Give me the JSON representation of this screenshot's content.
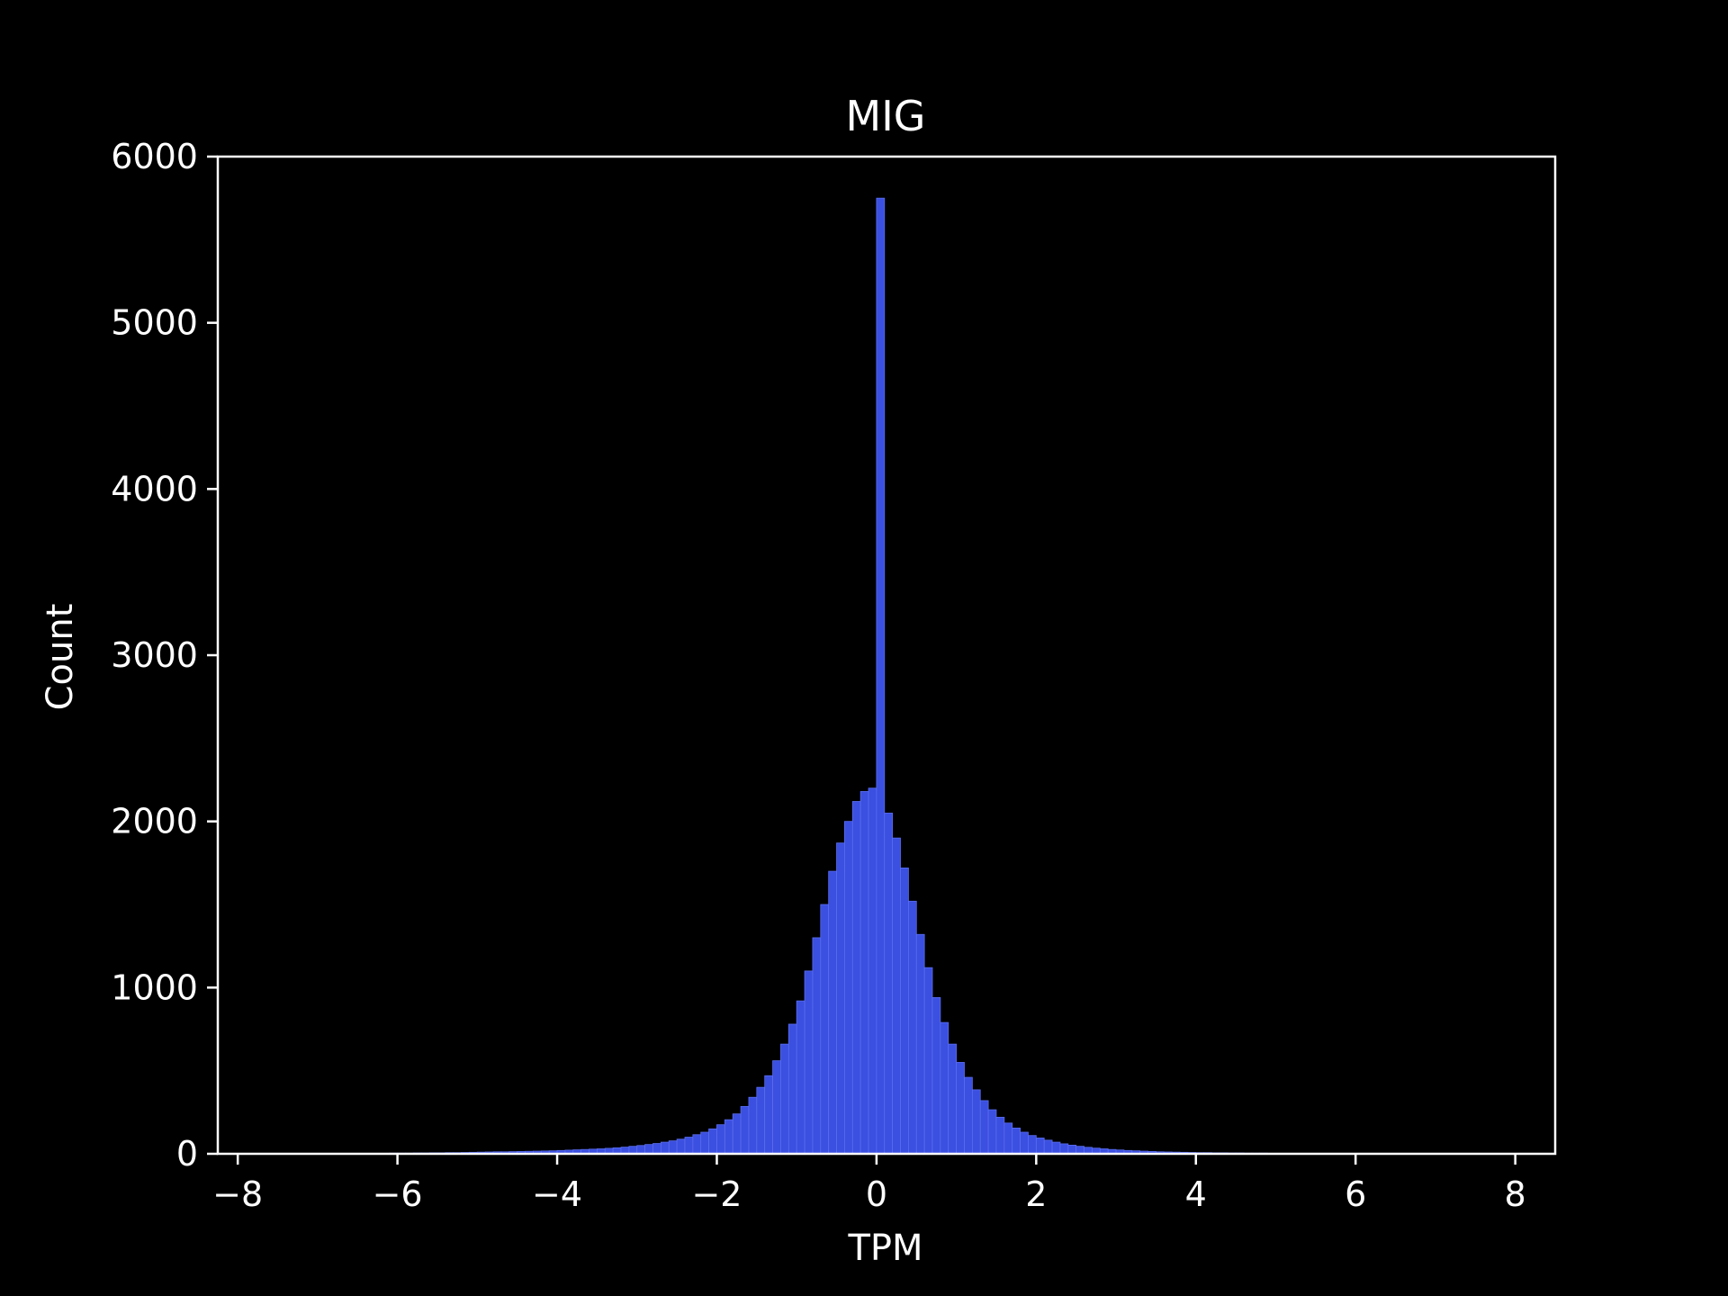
{
  "chart_data": {
    "type": "bar",
    "title": "MIG",
    "xlabel": "TPM",
    "ylabel": "Count",
    "xlim": [
      -8.25,
      8.5
    ],
    "ylim": [
      0,
      6000
    ],
    "xticks": [
      -8,
      -6,
      -4,
      -2,
      0,
      2,
      4,
      6,
      8
    ],
    "xtick_labels": [
      "−8",
      "−6",
      "−4",
      "−2",
      "0",
      "2",
      "4",
      "6",
      "8"
    ],
    "yticks": [
      0,
      1000,
      2000,
      3000,
      4000,
      5000,
      6000
    ],
    "ytick_labels": [
      "0",
      "1000",
      "2000",
      "3000",
      "4000",
      "5000",
      "6000"
    ],
    "bin_width": 0.1,
    "bar_color": "#3b4fe0",
    "edge_color": "#5a6ef0",
    "background": "#000000",
    "foreground": "#ffffff",
    "grid": false,
    "bins": [
      {
        "x": -8.0,
        "y": 1
      },
      {
        "x": -7.9,
        "y": 0
      },
      {
        "x": -7.8,
        "y": 1
      },
      {
        "x": -7.7,
        "y": 0
      },
      {
        "x": -7.6,
        "y": 1
      },
      {
        "x": -7.5,
        "y": 1
      },
      {
        "x": -7.4,
        "y": 0
      },
      {
        "x": -7.3,
        "y": 1
      },
      {
        "x": -7.2,
        "y": 1
      },
      {
        "x": -7.1,
        "y": 1
      },
      {
        "x": -7.0,
        "y": 2
      },
      {
        "x": -6.9,
        "y": 1
      },
      {
        "x": -6.8,
        "y": 2
      },
      {
        "x": -6.7,
        "y": 2
      },
      {
        "x": -6.6,
        "y": 2
      },
      {
        "x": -6.5,
        "y": 3
      },
      {
        "x": -6.4,
        "y": 2
      },
      {
        "x": -6.3,
        "y": 3
      },
      {
        "x": -6.2,
        "y": 3
      },
      {
        "x": -6.1,
        "y": 4
      },
      {
        "x": -6.0,
        "y": 4
      },
      {
        "x": -5.9,
        "y": 4
      },
      {
        "x": -5.8,
        "y": 5
      },
      {
        "x": -5.7,
        "y": 5
      },
      {
        "x": -5.6,
        "y": 6
      },
      {
        "x": -5.5,
        "y": 6
      },
      {
        "x": -5.4,
        "y": 7
      },
      {
        "x": -5.3,
        "y": 7
      },
      {
        "x": -5.2,
        "y": 8
      },
      {
        "x": -5.1,
        "y": 9
      },
      {
        "x": -5.0,
        "y": 10
      },
      {
        "x": -4.9,
        "y": 11
      },
      {
        "x": -4.8,
        "y": 12
      },
      {
        "x": -4.7,
        "y": 12
      },
      {
        "x": -4.6,
        "y": 13
      },
      {
        "x": -4.5,
        "y": 14
      },
      {
        "x": -4.4,
        "y": 15
      },
      {
        "x": -4.3,
        "y": 16
      },
      {
        "x": -4.2,
        "y": 17
      },
      {
        "x": -4.1,
        "y": 18
      },
      {
        "x": -4.0,
        "y": 20
      },
      {
        "x": -3.9,
        "y": 22
      },
      {
        "x": -3.8,
        "y": 24
      },
      {
        "x": -3.7,
        "y": 26
      },
      {
        "x": -3.6,
        "y": 28
      },
      {
        "x": -3.5,
        "y": 30
      },
      {
        "x": -3.4,
        "y": 33
      },
      {
        "x": -3.3,
        "y": 36
      },
      {
        "x": -3.2,
        "y": 40
      },
      {
        "x": -3.1,
        "y": 45
      },
      {
        "x": -3.0,
        "y": 50
      },
      {
        "x": -2.9,
        "y": 56
      },
      {
        "x": -2.8,
        "y": 62
      },
      {
        "x": -2.7,
        "y": 70
      },
      {
        "x": -2.6,
        "y": 78
      },
      {
        "x": -2.5,
        "y": 88
      },
      {
        "x": -2.4,
        "y": 100
      },
      {
        "x": -2.3,
        "y": 115
      },
      {
        "x": -2.2,
        "y": 130
      },
      {
        "x": -2.1,
        "y": 150
      },
      {
        "x": -2.0,
        "y": 175
      },
      {
        "x": -1.9,
        "y": 205
      },
      {
        "x": -1.8,
        "y": 240
      },
      {
        "x": -1.7,
        "y": 285
      },
      {
        "x": -1.6,
        "y": 340
      },
      {
        "x": -1.5,
        "y": 400
      },
      {
        "x": -1.4,
        "y": 470
      },
      {
        "x": -1.3,
        "y": 560
      },
      {
        "x": -1.2,
        "y": 660
      },
      {
        "x": -1.1,
        "y": 780
      },
      {
        "x": -1.0,
        "y": 920
      },
      {
        "x": -0.9,
        "y": 1100
      },
      {
        "x": -0.8,
        "y": 1300
      },
      {
        "x": -0.7,
        "y": 1500
      },
      {
        "x": -0.6,
        "y": 1700
      },
      {
        "x": -0.5,
        "y": 1870
      },
      {
        "x": -0.4,
        "y": 2000
      },
      {
        "x": -0.3,
        "y": 2120
      },
      {
        "x": -0.2,
        "y": 2180
      },
      {
        "x": -0.1,
        "y": 2200
      },
      {
        "x": 0.0,
        "y": 5750
      },
      {
        "x": 0.1,
        "y": 2050
      },
      {
        "x": 0.2,
        "y": 1900
      },
      {
        "x": 0.3,
        "y": 1720
      },
      {
        "x": 0.4,
        "y": 1520
      },
      {
        "x": 0.5,
        "y": 1320
      },
      {
        "x": 0.6,
        "y": 1120
      },
      {
        "x": 0.7,
        "y": 940
      },
      {
        "x": 0.8,
        "y": 790
      },
      {
        "x": 0.9,
        "y": 660
      },
      {
        "x": 1.0,
        "y": 550
      },
      {
        "x": 1.1,
        "y": 460
      },
      {
        "x": 1.2,
        "y": 385
      },
      {
        "x": 1.3,
        "y": 320
      },
      {
        "x": 1.4,
        "y": 265
      },
      {
        "x": 1.5,
        "y": 220
      },
      {
        "x": 1.6,
        "y": 185
      },
      {
        "x": 1.7,
        "y": 155
      },
      {
        "x": 1.8,
        "y": 130
      },
      {
        "x": 1.9,
        "y": 110
      },
      {
        "x": 2.0,
        "y": 95
      },
      {
        "x": 2.1,
        "y": 82
      },
      {
        "x": 2.2,
        "y": 70
      },
      {
        "x": 2.3,
        "y": 60
      },
      {
        "x": 2.4,
        "y": 52
      },
      {
        "x": 2.5,
        "y": 45
      },
      {
        "x": 2.6,
        "y": 39
      },
      {
        "x": 2.7,
        "y": 34
      },
      {
        "x": 2.8,
        "y": 30
      },
      {
        "x": 2.9,
        "y": 26
      },
      {
        "x": 3.0,
        "y": 23
      },
      {
        "x": 3.1,
        "y": 20
      },
      {
        "x": 3.2,
        "y": 18
      },
      {
        "x": 3.3,
        "y": 16
      },
      {
        "x": 3.4,
        "y": 14
      },
      {
        "x": 3.5,
        "y": 12
      },
      {
        "x": 3.6,
        "y": 11
      },
      {
        "x": 3.7,
        "y": 10
      },
      {
        "x": 3.8,
        "y": 9
      },
      {
        "x": 3.9,
        "y": 8
      },
      {
        "x": 4.0,
        "y": 7
      },
      {
        "x": 4.1,
        "y": 7
      },
      {
        "x": 4.2,
        "y": 6
      },
      {
        "x": 4.3,
        "y": 6
      },
      {
        "x": 4.4,
        "y": 5
      },
      {
        "x": 4.5,
        "y": 5
      },
      {
        "x": 4.6,
        "y": 4
      },
      {
        "x": 4.7,
        "y": 4
      },
      {
        "x": 4.8,
        "y": 4
      },
      {
        "x": 4.9,
        "y": 3
      },
      {
        "x": 5.0,
        "y": 3
      },
      {
        "x": 5.1,
        "y": 3
      },
      {
        "x": 5.2,
        "y": 3
      },
      {
        "x": 5.3,
        "y": 2
      },
      {
        "x": 5.4,
        "y": 2
      },
      {
        "x": 5.5,
        "y": 2
      },
      {
        "x": 5.6,
        "y": 2
      },
      {
        "x": 5.7,
        "y": 2
      },
      {
        "x": 5.8,
        "y": 1
      },
      {
        "x": 5.9,
        "y": 1
      },
      {
        "x": 6.0,
        "y": 1
      },
      {
        "x": 6.1,
        "y": 1
      },
      {
        "x": 6.2,
        "y": 1
      },
      {
        "x": 6.3,
        "y": 1
      },
      {
        "x": 6.4,
        "y": 1
      },
      {
        "x": 6.5,
        "y": 1
      },
      {
        "x": 6.6,
        "y": 1
      },
      {
        "x": 6.7,
        "y": 0
      },
      {
        "x": 6.8,
        "y": 1
      },
      {
        "x": 6.9,
        "y": 0
      },
      {
        "x": 7.0,
        "y": 1
      },
      {
        "x": 7.1,
        "y": 0
      },
      {
        "x": 7.2,
        "y": 1
      },
      {
        "x": 7.3,
        "y": 0
      },
      {
        "x": 7.4,
        "y": 1
      },
      {
        "x": 7.5,
        "y": 0
      },
      {
        "x": 7.6,
        "y": 0
      },
      {
        "x": 7.7,
        "y": 1
      },
      {
        "x": 7.8,
        "y": 0
      },
      {
        "x": 7.9,
        "y": 1
      }
    ]
  }
}
